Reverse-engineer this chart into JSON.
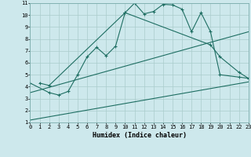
{
  "title": "",
  "xlabel": "Humidex (Indice chaleur)",
  "xlim": [
    0,
    23
  ],
  "ylim": [
    1,
    11
  ],
  "xticks": [
    0,
    1,
    2,
    3,
    4,
    5,
    6,
    7,
    8,
    9,
    10,
    11,
    12,
    13,
    14,
    15,
    16,
    17,
    18,
    19,
    20,
    21,
    22,
    23
  ],
  "yticks": [
    1,
    2,
    3,
    4,
    5,
    6,
    7,
    8,
    9,
    10,
    11
  ],
  "bg_color": "#cde8ec",
  "line_color": "#1e6e62",
  "grid_color": "#aacccc",
  "line1_x": [
    1,
    2,
    10,
    11,
    12,
    13,
    14,
    15,
    16,
    17,
    18,
    19,
    20,
    22,
    23
  ],
  "line1_y": [
    4.3,
    4.1,
    10.2,
    11.0,
    10.1,
    10.3,
    10.9,
    10.85,
    10.5,
    8.6,
    10.2,
    8.6,
    5.0,
    4.8,
    4.7
  ],
  "line2_x": [
    0,
    2,
    3,
    4,
    5,
    6,
    7,
    8,
    9,
    10,
    19,
    20,
    22,
    23
  ],
  "line2_y": [
    4.3,
    3.5,
    3.3,
    3.6,
    5.0,
    6.5,
    7.3,
    6.6,
    7.4,
    10.2,
    7.5,
    6.5,
    5.2,
    4.7
  ],
  "line3_x": [
    0,
    23
  ],
  "line3_y": [
    3.5,
    8.6
  ],
  "line4_x": [
    0,
    23
  ],
  "line4_y": [
    1.2,
    4.4
  ]
}
